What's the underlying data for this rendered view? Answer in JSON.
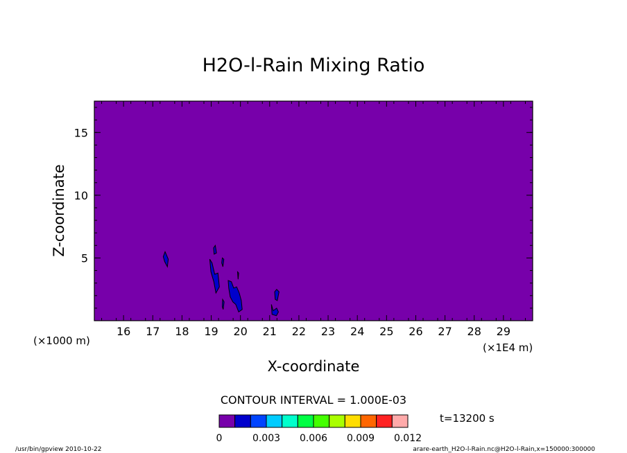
{
  "chart_data": {
    "type": "heatmap",
    "title": "H2O-l-Rain Mixing Ratio",
    "xlabel": "X-coordinate",
    "ylabel": "Z-coordinate",
    "x_unit_left": "(×1000 m)",
    "x_unit_right": "(×1E4 m)",
    "xlim": [
      150,
      300
    ],
    "ylim": [
      0,
      17.5
    ],
    "x_ticks": [
      16,
      17,
      18,
      19,
      20,
      21,
      22,
      23,
      24,
      25,
      26,
      27,
      28,
      29
    ],
    "y_ticks": [
      5,
      10,
      15
    ],
    "background_level_color": "#7700aa",
    "contour_interval_text": "CONTOUR INTERVAL = 1.000E-03",
    "time_label": "t=13200 s",
    "colorbar": {
      "levels": [
        0,
        0.001,
        0.002,
        0.003,
        0.004,
        0.005,
        0.006,
        0.007,
        0.008,
        0.009,
        0.01,
        0.011,
        0.012
      ],
      "tick_labels": [
        "0",
        "0.003",
        "0.006",
        "0.009",
        "0.012"
      ],
      "tick_values": [
        0,
        0.003,
        0.006,
        0.009,
        0.012
      ],
      "colors": [
        "#7700aa",
        "#0000cc",
        "#0044ff",
        "#00ccff",
        "#00ffcc",
        "#00ff44",
        "#44ff00",
        "#aaff00",
        "#ffdd00",
        "#ff6600",
        "#ff2222",
        "#ffaaaa"
      ]
    },
    "blobs": [
      {
        "level": 0.001,
        "points": [
          [
            173.6,
            5.1
          ],
          [
            174.2,
            5.5
          ],
          [
            175.3,
            4.9
          ],
          [
            175.0,
            4.3
          ],
          [
            174.1,
            4.7
          ]
        ]
      },
      {
        "level": 0.001,
        "points": [
          [
            190.8,
            5.8
          ],
          [
            191.4,
            6.0
          ],
          [
            191.8,
            5.4
          ],
          [
            191.0,
            5.3
          ]
        ]
      },
      {
        "level": 0.001,
        "points": [
          [
            193.8,
            5.0
          ],
          [
            194.3,
            4.9
          ],
          [
            194.0,
            4.3
          ],
          [
            193.6,
            4.6
          ]
        ]
      },
      {
        "level": 0.001,
        "points": [
          [
            189.5,
            4.9
          ],
          [
            190.3,
            4.6
          ],
          [
            191.2,
            3.7
          ],
          [
            192.3,
            3.8
          ],
          [
            192.8,
            2.7
          ],
          [
            191.6,
            2.2
          ],
          [
            190.9,
            3.1
          ],
          [
            189.9,
            3.9
          ]
        ]
      },
      {
        "level": 0.001,
        "points": [
          [
            193.9,
            1.7
          ],
          [
            194.4,
            1.5
          ],
          [
            194.1,
            0.9
          ],
          [
            193.8,
            1.1
          ]
        ]
      },
      {
        "level": 0.001,
        "points": [
          [
            195.8,
            3.2
          ],
          [
            196.9,
            3.1
          ],
          [
            197.7,
            2.6
          ],
          [
            198.7,
            2.7
          ],
          [
            199.6,
            2.2
          ],
          [
            200.3,
            1.6
          ],
          [
            200.6,
            0.9
          ],
          [
            199.4,
            0.7
          ],
          [
            198.4,
            1.3
          ],
          [
            197.4,
            1.5
          ],
          [
            196.5,
            1.9
          ],
          [
            196.0,
            2.6
          ]
        ]
      },
      {
        "level": 0.001,
        "points": [
          [
            199.0,
            3.9
          ],
          [
            199.4,
            3.8
          ],
          [
            199.2,
            3.3
          ]
        ]
      },
      {
        "level": 0.001,
        "points": [
          [
            211.7,
            2.3
          ],
          [
            212.4,
            2.5
          ],
          [
            213.2,
            2.3
          ],
          [
            212.6,
            1.6
          ],
          [
            211.9,
            1.7
          ]
        ]
      },
      {
        "level": 0.001,
        "points": [
          [
            210.6,
            1.3
          ],
          [
            210.8,
            0.5
          ],
          [
            212.3,
            0.4
          ],
          [
            213.0,
            0.7
          ],
          [
            212.4,
            1.0
          ],
          [
            211.2,
            0.8
          ]
        ]
      }
    ]
  },
  "footer": {
    "left": "/usr/bin/gpview   2010-10-22",
    "right": "arare-earth_H2O-l-Rain.nc@H2O-l-Rain,x=150000:300000"
  }
}
